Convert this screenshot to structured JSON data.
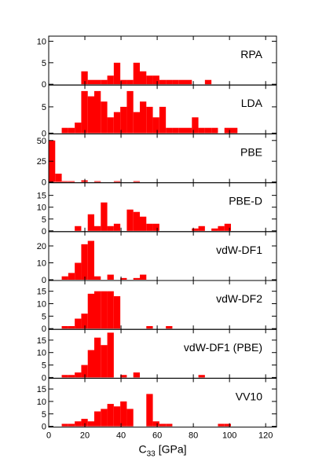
{
  "chart_data": {
    "type": "bar",
    "layout": "stacked-panels",
    "bin_width": 3.6,
    "x": [
      1.8,
      5.4,
      9,
      12.6,
      16.2,
      19.8,
      23.4,
      27,
      30.6,
      34.2,
      37.8,
      41.4,
      45,
      48.6,
      52.2,
      55.8,
      59.4,
      63,
      66.6,
      70.2,
      73.8,
      77.4,
      81,
      84.6,
      88.2,
      91.8,
      95.4,
      99,
      102.6,
      106.2
    ],
    "xlabel": "C",
    "xlabel_sub": "33",
    "xlabel_unit": "[GPa]",
    "xlim": [
      0,
      126
    ],
    "x_ticks": [
      "0",
      "20",
      "40",
      "60",
      "80",
      "100",
      "120"
    ],
    "bar_color": "#ff0000",
    "panels": [
      {
        "name": "RPA",
        "ylim": [
          0,
          11
        ],
        "y_ticks": [
          "0",
          "5",
          "10"
        ],
        "values": [
          0,
          0,
          0,
          0,
          0,
          3,
          1,
          1,
          1,
          2,
          5,
          1,
          1,
          5,
          3,
          2,
          2,
          1,
          1,
          1,
          1,
          1,
          0,
          0,
          1,
          0,
          0,
          0,
          0,
          0
        ]
      },
      {
        "name": "LDA",
        "ylim": [
          0,
          9
        ],
        "y_ticks": [
          "0",
          "5"
        ],
        "values": [
          0,
          0,
          1,
          1,
          2,
          8,
          7,
          8,
          6,
          3,
          4,
          5,
          8,
          4,
          6,
          5,
          3,
          5,
          1,
          1,
          1,
          1,
          3,
          1,
          1,
          1,
          0,
          1,
          1,
          0
        ]
      },
      {
        "name": "PBE",
        "ylim": [
          0,
          57
        ],
        "y_ticks": [
          "0",
          "25",
          "50"
        ],
        "values": [
          50,
          10,
          1,
          1,
          0,
          2,
          0,
          1,
          0,
          0,
          1,
          0,
          0,
          1,
          0,
          0,
          0,
          0,
          0,
          0,
          0,
          0,
          0,
          0,
          0,
          0,
          0,
          0,
          0,
          0
        ]
      },
      {
        "name": "PBE-D",
        "ylim": [
          0,
          20
        ],
        "y_ticks": [
          "0",
          "5",
          "10",
          "15"
        ],
        "values": [
          0,
          0,
          0,
          0,
          2,
          0,
          7,
          2,
          12,
          2,
          3,
          0,
          9,
          8,
          6,
          3,
          3,
          0,
          0,
          0,
          0,
          0,
          1,
          2,
          0,
          1,
          2,
          3,
          0,
          0
        ]
      },
      {
        "name": "vdW-DF1",
        "ylim": [
          0,
          28
        ],
        "y_ticks": [
          "0",
          "10",
          "20"
        ],
        "values": [
          0,
          0,
          2,
          4,
          10,
          21,
          23,
          2,
          0,
          3,
          0,
          1,
          0,
          1,
          3,
          0,
          0,
          0,
          0,
          0,
          0,
          0,
          0,
          0,
          0,
          0,
          0,
          0,
          0,
          0
        ]
      },
      {
        "name": "vdW-DF2",
        "ylim": [
          0,
          19
        ],
        "y_ticks": [
          "0",
          "5",
          "10",
          "15"
        ],
        "values": [
          0,
          0,
          1,
          1,
          4,
          6,
          14,
          15,
          15,
          15,
          13,
          0,
          0,
          0,
          0,
          1,
          0,
          0,
          1,
          0,
          0,
          0,
          0,
          0,
          0,
          0,
          0,
          0,
          0,
          0
        ]
      },
      {
        "name": "vdW-DF1 (PBE)",
        "ylim": [
          0,
          19
        ],
        "y_ticks": [
          "0",
          "5",
          "10",
          "15"
        ],
        "values": [
          0,
          0,
          1,
          1,
          2,
          5,
          11,
          16,
          13,
          18,
          0,
          1,
          0,
          2,
          0,
          0,
          0,
          0,
          0,
          0,
          0,
          0,
          0,
          1,
          0,
          0,
          0,
          0,
          0,
          0
        ]
      },
      {
        "name": "VV10",
        "ylim": [
          0,
          19
        ],
        "y_ticks": [
          "0",
          "5",
          "10",
          "15"
        ],
        "values": [
          0,
          0,
          1,
          1,
          2,
          3,
          2,
          6,
          7,
          9,
          8,
          10,
          7,
          0,
          0,
          13,
          2,
          1,
          1,
          0,
          0,
          0,
          0,
          0,
          0,
          0,
          1,
          1,
          0,
          0
        ]
      }
    ]
  }
}
